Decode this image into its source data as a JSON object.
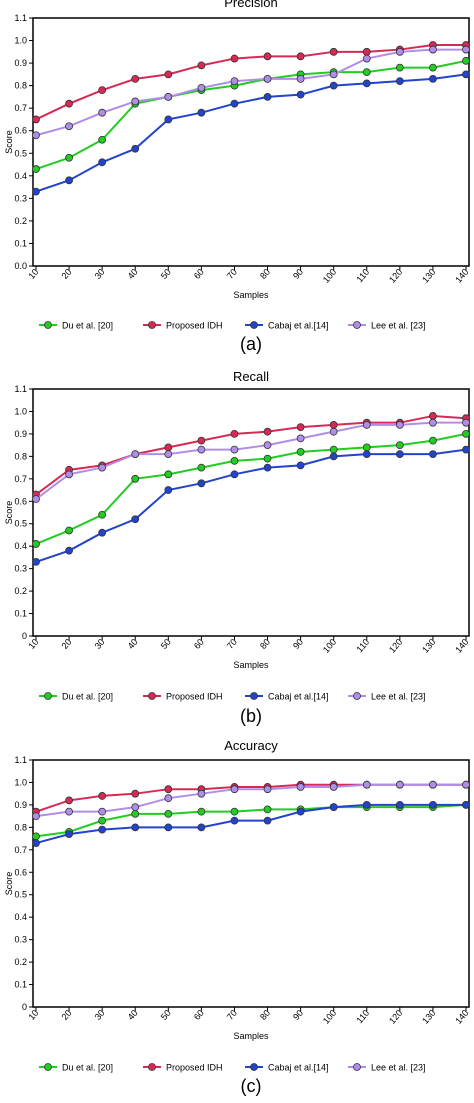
{
  "chart_data": [
    {
      "type": "line",
      "title": "Precision",
      "xlabel": "Samples",
      "ylabel": "Score",
      "panel_label": "(a)",
      "ylim": [
        0,
        1.1
      ],
      "yticks": [
        "0.0",
        "0.1",
        "0.2",
        "0.3",
        "0.4",
        "0.5",
        "0.6",
        "0.7",
        "0.8",
        "0.9",
        "1.0",
        "1.1"
      ],
      "categories": [
        "10",
        "20",
        "30",
        "40",
        "50",
        "60",
        "70",
        "80",
        "90",
        "100",
        "110",
        "120",
        "130",
        "140"
      ],
      "grid": false,
      "legend": "bottom",
      "series": [
        {
          "name": "Du et al. [20]",
          "color": "#22cc22",
          "values": [
            0.43,
            0.48,
            0.56,
            0.72,
            0.75,
            0.78,
            0.8,
            0.83,
            0.85,
            0.86,
            0.86,
            0.88,
            0.88,
            0.91
          ]
        },
        {
          "name": "Proposed IDH",
          "color": "#d62a55",
          "values": [
            0.65,
            0.72,
            0.78,
            0.83,
            0.85,
            0.89,
            0.92,
            0.93,
            0.93,
            0.95,
            0.95,
            0.96,
            0.98,
            0.98
          ]
        },
        {
          "name": "Cabaj et al.[14]",
          "color": "#2244cc",
          "values": [
            0.33,
            0.38,
            0.46,
            0.52,
            0.65,
            0.68,
            0.72,
            0.75,
            0.76,
            0.8,
            0.81,
            0.82,
            0.83,
            0.85
          ]
        },
        {
          "name": "Lee et al. [23]",
          "color": "#b08de8",
          "values": [
            0.58,
            0.62,
            0.68,
            0.73,
            0.75,
            0.79,
            0.82,
            0.83,
            0.83,
            0.85,
            0.92,
            0.95,
            0.96,
            0.96
          ]
        }
      ]
    },
    {
      "type": "line",
      "title": "Recall",
      "xlabel": "Samples",
      "ylabel": "Score",
      "panel_label": "(b)",
      "ylim": [
        0,
        1.1
      ],
      "yticks": [
        "0",
        "0.1",
        "0.2",
        "0.3",
        "0.4",
        "0.5",
        "0.6",
        "0.7",
        "0.8",
        "0.9",
        "1.0",
        "1.1"
      ],
      "categories": [
        "10",
        "20",
        "30",
        "40",
        "50",
        "60",
        "70",
        "80",
        "90",
        "100",
        "110",
        "120",
        "130",
        "140"
      ],
      "grid": false,
      "legend": "bottom",
      "series": [
        {
          "name": "Du et al. [20]",
          "color": "#22cc22",
          "values": [
            0.41,
            0.47,
            0.54,
            0.7,
            0.72,
            0.75,
            0.78,
            0.79,
            0.82,
            0.83,
            0.84,
            0.85,
            0.87,
            0.9
          ]
        },
        {
          "name": "Proposed IDH",
          "color": "#d62a55",
          "values": [
            0.63,
            0.74,
            0.76,
            0.81,
            0.84,
            0.87,
            0.9,
            0.91,
            0.93,
            0.94,
            0.95,
            0.95,
            0.98,
            0.97
          ]
        },
        {
          "name": "Cabaj et al.[14]",
          "color": "#2244cc",
          "values": [
            0.33,
            0.38,
            0.46,
            0.52,
            0.65,
            0.68,
            0.72,
            0.75,
            0.76,
            0.8,
            0.81,
            0.81,
            0.81,
            0.83
          ]
        },
        {
          "name": "Lee et al. [23]",
          "color": "#b08de8",
          "values": [
            0.61,
            0.72,
            0.75,
            0.81,
            0.81,
            0.83,
            0.83,
            0.85,
            0.88,
            0.91,
            0.94,
            0.94,
            0.95,
            0.95
          ]
        }
      ]
    },
    {
      "type": "line",
      "title": "Accuracy",
      "xlabel": "Samples",
      "ylabel": "Score",
      "panel_label": "(c)",
      "ylim": [
        0,
        1.1
      ],
      "yticks": [
        "0",
        "0.1",
        "0.2",
        "0.3",
        "0.4",
        "0.5",
        "0.6",
        "0.7",
        "0.8",
        "0.9",
        "1.0",
        "1.1"
      ],
      "categories": [
        "10",
        "20",
        "30",
        "40",
        "50",
        "60",
        "70",
        "80",
        "90",
        "100",
        "110",
        "120",
        "130",
        "140"
      ],
      "grid": false,
      "legend": "bottom",
      "series": [
        {
          "name": "Du et al. [20]",
          "color": "#22cc22",
          "values": [
            0.76,
            0.78,
            0.83,
            0.86,
            0.86,
            0.87,
            0.87,
            0.88,
            0.88,
            0.89,
            0.89,
            0.89,
            0.89,
            0.9
          ]
        },
        {
          "name": "Proposed IDH",
          "color": "#d62a55",
          "values": [
            0.87,
            0.92,
            0.94,
            0.95,
            0.97,
            0.97,
            0.98,
            0.98,
            0.99,
            0.99,
            0.99,
            0.99,
            0.99,
            0.99
          ]
        },
        {
          "name": "Cabaj et al.[14]",
          "color": "#2244cc",
          "values": [
            0.73,
            0.77,
            0.79,
            0.8,
            0.8,
            0.8,
            0.83,
            0.83,
            0.87,
            0.89,
            0.9,
            0.9,
            0.9,
            0.9
          ]
        },
        {
          "name": "Lee et al. [23]",
          "color": "#b08de8",
          "values": [
            0.85,
            0.87,
            0.87,
            0.89,
            0.93,
            0.95,
            0.97,
            0.97,
            0.98,
            0.98,
            0.99,
            0.99,
            0.99,
            0.99
          ]
        }
      ]
    }
  ]
}
